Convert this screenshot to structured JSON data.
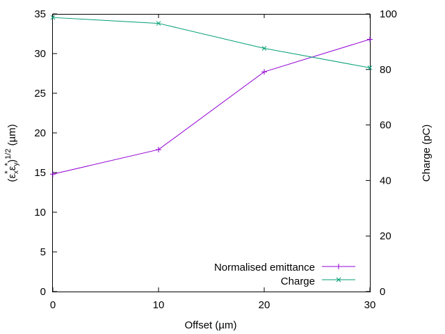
{
  "chart_data": {
    "type": "line",
    "x": [
      0,
      10,
      20,
      30
    ],
    "xlabel": "Offset (µm)",
    "ylabel": {
      "main": "(ε",
      "sub_x": "x",
      "sup_star": "*",
      "mid": "ε",
      "sub_y": "y",
      "close": ")",
      "power": "1/2",
      "unit": " (µm)"
    },
    "y2label": "Charge (pC)",
    "xlim": [
      0,
      30
    ],
    "ylim": [
      0,
      35
    ],
    "y2lim": [
      0,
      100
    ],
    "xticks": [
      "0",
      "10",
      "20",
      "30"
    ],
    "yticks": [
      "0",
      "5",
      "10",
      "15",
      "20",
      "25",
      "30",
      "35"
    ],
    "y2ticks": [
      "0",
      "20",
      "40",
      "60",
      "80",
      "100"
    ],
    "grid": false,
    "legend_position": "bottom-right",
    "series": [
      {
        "name": "Normalised emittance",
        "axis": "left",
        "marker": "plus",
        "color": "#9400d3",
        "values": [
          14.8,
          17.9,
          27.7,
          31.8
        ]
      },
      {
        "name": "Charge",
        "axis": "right",
        "marker": "cross",
        "color": "#009e73",
        "values": [
          98.7,
          96.6,
          87.6,
          80.6
        ]
      }
    ]
  }
}
